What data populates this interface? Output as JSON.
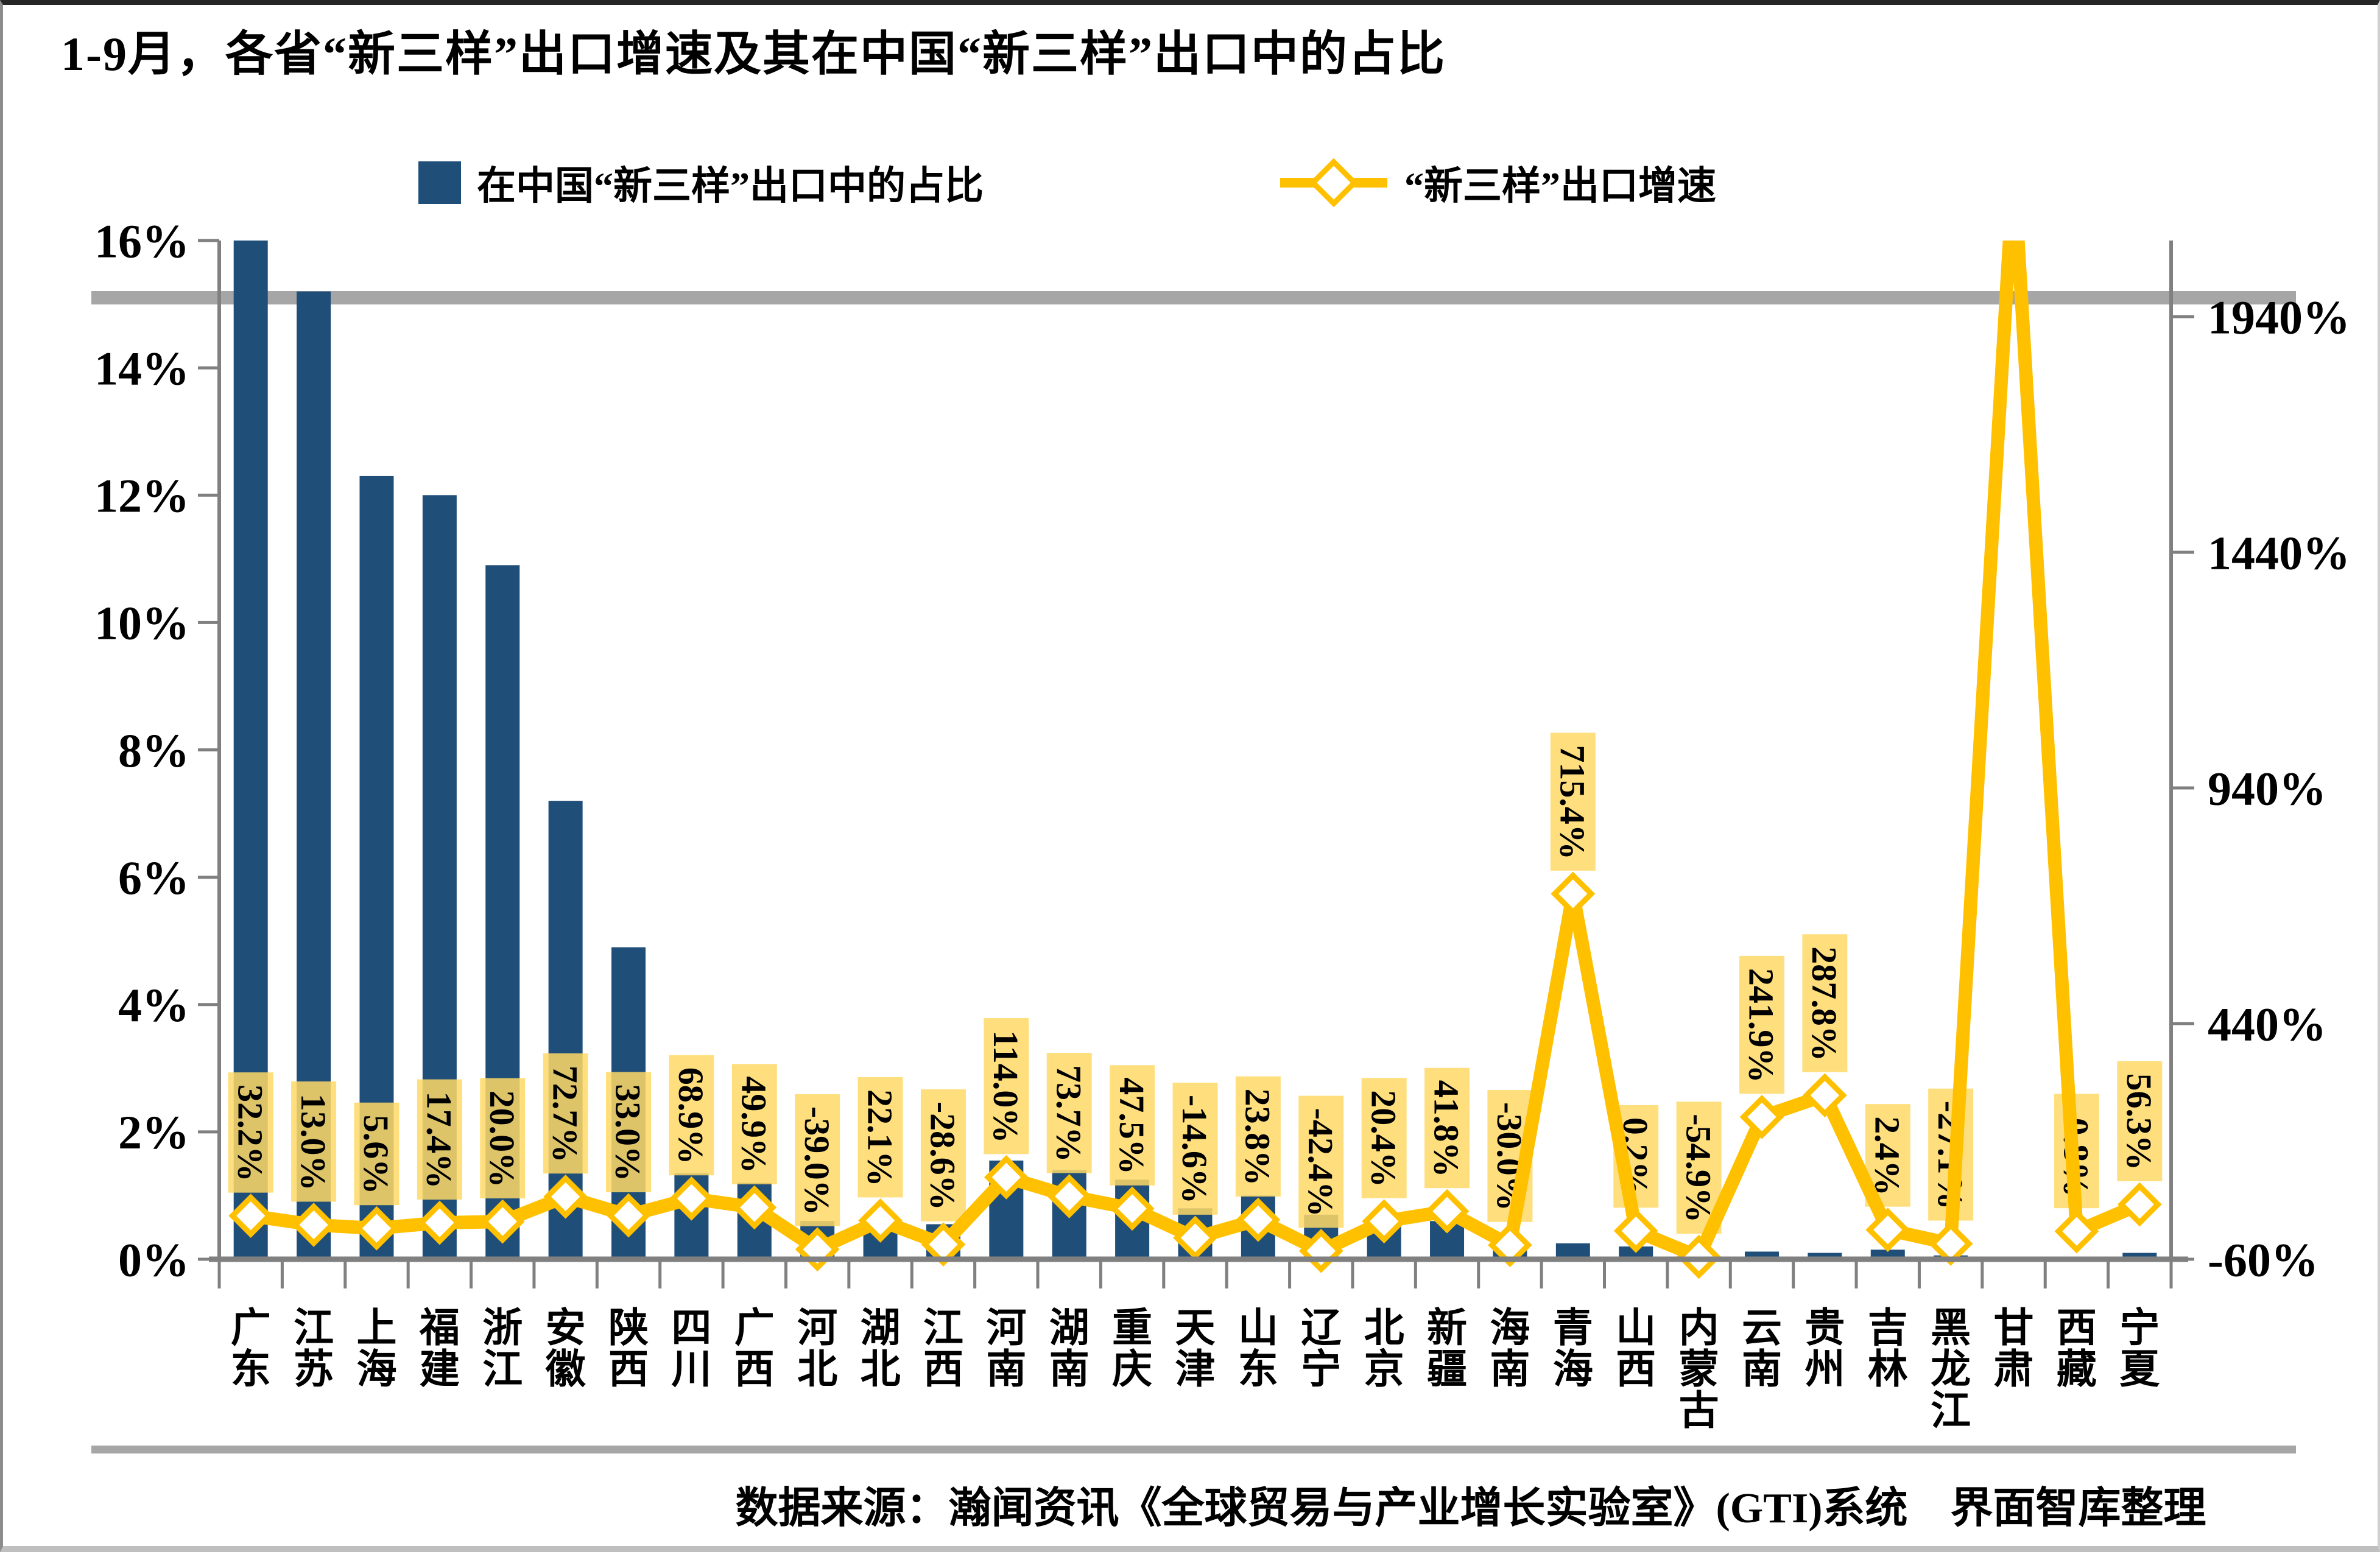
{
  "page": {
    "title": "1-9月，各省“新三样”出口增速及其在中国“新三样”出口中的占比",
    "source": "数据来源：瀚闻资讯《全球贸易与产业增长实验室》(GTI)系统　界面智库整理"
  },
  "legend": {
    "items": [
      {
        "label": "在中国“新三样”出口中的占比",
        "marker": "bar-swatch",
        "color": "#1F4E79"
      },
      {
        "label": "“新三样”出口增速",
        "marker": "line-diamond",
        "color": "#FFC000"
      }
    ]
  },
  "colors": {
    "bar": "#1F4E79",
    "line": "#FFC000",
    "marker_fill": "#FFFFFF",
    "label_bg": "#FFD966",
    "axis": "#808080",
    "divider": "#A6A6A6",
    "text": "#000000"
  },
  "chart_data": {
    "type": "bar",
    "title": "1-9月，各省“新三样”出口增速及其在中国“新三样”出口中的占比",
    "categories": [
      "广东",
      "江苏",
      "上海",
      "福建",
      "浙江",
      "安徽",
      "陕西",
      "四川",
      "广西",
      "河北",
      "湖北",
      "江西",
      "河南",
      "湖南",
      "重庆",
      "天津",
      "山东",
      "辽宁",
      "北京",
      "新疆",
      "海南",
      "青海",
      "山西",
      "内蒙古",
      "云南",
      "贵州",
      "吉林",
      "黑龙江",
      "甘肃",
      "西藏",
      "宁夏"
    ],
    "series": [
      {
        "name": "在中国“新三样”出口中的占比",
        "type": "bar",
        "axis": "left",
        "unit": "%",
        "values": [
          16.0,
          15.2,
          12.3,
          12.0,
          10.9,
          7.2,
          4.9,
          1.35,
          1.2,
          0.6,
          0.65,
          0.55,
          1.55,
          1.4,
          1.25,
          0.8,
          1.0,
          0.7,
          0.65,
          0.6,
          0.2,
          0.25,
          0.2,
          0.05,
          0.12,
          0.1,
          0.15,
          0.06,
          0.03,
          0.02,
          0.1
        ]
      },
      {
        "name": "“新三样”出口增速",
        "type": "line",
        "axis": "right",
        "unit": "%",
        "values": [
          32.2,
          13.0,
          5.6,
          17.4,
          20.0,
          72.7,
          33.0,
          68.9,
          49.9,
          -39.0,
          22.1,
          -28.6,
          114.0,
          73.7,
          47.5,
          -14.6,
          23.8,
          -42.4,
          20.4,
          41.8,
          -30.0,
          715.4,
          0.2,
          -54.9,
          241.9,
          287.8,
          2.4,
          -27.1,
          null,
          -0.8,
          56.3
        ],
        "labels": [
          "32.2%",
          "13.0%",
          "5.6%",
          "17.4%",
          "20.0%",
          "72.7%",
          "33.0%",
          "68.9%",
          "49.9%",
          "-39.0%",
          "22.1%",
          "-28.6%",
          "114.0%",
          "73.7%",
          "47.5%",
          "-14.6%",
          "23.8%",
          "-42.4%",
          "20.4%",
          "41.8%",
          "-30.0%",
          "715.4%",
          "0.2%",
          "-54.9%",
          "241.9%",
          "287.8%",
          "2.4%",
          "-27.1%",
          null,
          "-0.8%",
          "56.3%"
        ],
        "offscale_peak_category": "甘肃"
      }
    ],
    "left_axis": {
      "ticks": [
        "0%",
        "2%",
        "4%",
        "6%",
        "8%",
        "10%",
        "12%",
        "14%",
        "16%"
      ],
      "min": 0,
      "max": 16
    },
    "right_axis": {
      "ticks": [
        "-60%",
        "440%",
        "940%",
        "1440%",
        "1940%"
      ],
      "min": -60,
      "tick_step": 500
    },
    "grid": "off",
    "legend_position": "top"
  }
}
